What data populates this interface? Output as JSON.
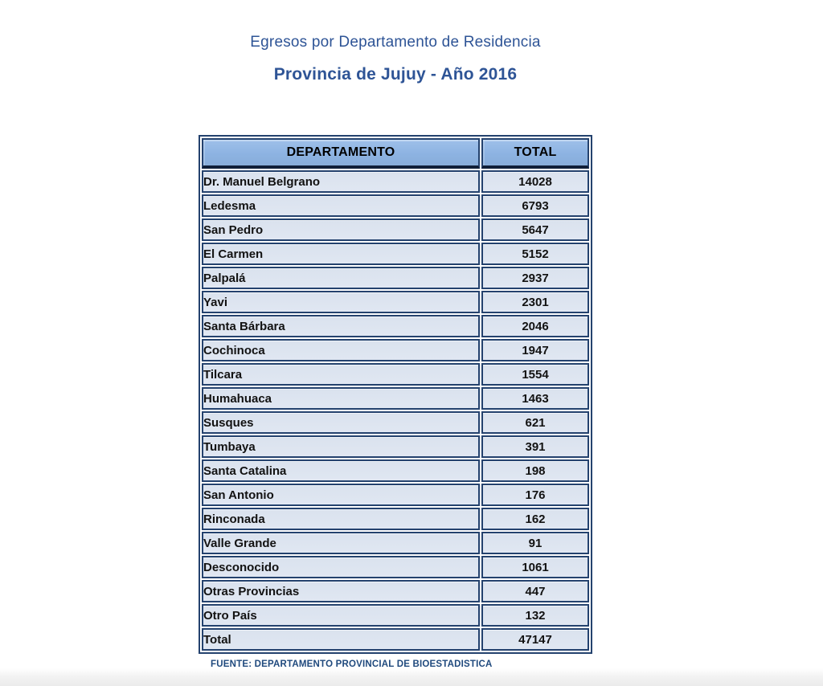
{
  "title": {
    "line1": "Egresos por Departamento de Residencia",
    "line2": "Provincia de Jujuy - Año 2016"
  },
  "table": {
    "headers": [
      "DEPARTAMENTO",
      "TOTAL"
    ],
    "rows": [
      {
        "departamento": "Dr. Manuel Belgrano",
        "total": "14028"
      },
      {
        "departamento": "Ledesma",
        "total": "6793"
      },
      {
        "departamento": "San Pedro",
        "total": "5647"
      },
      {
        "departamento": "El Carmen",
        "total": "5152"
      },
      {
        "departamento": "Palpalá",
        "total": "2937"
      },
      {
        "departamento": "Yavi",
        "total": "2301"
      },
      {
        "departamento": "Santa Bárbara",
        "total": "2046"
      },
      {
        "departamento": "Cochinoca",
        "total": "1947"
      },
      {
        "departamento": "Tilcara",
        "total": "1554"
      },
      {
        "departamento": "Humahuaca",
        "total": "1463"
      },
      {
        "departamento": "Susques",
        "total": "621"
      },
      {
        "departamento": "Tumbaya",
        "total": "391"
      },
      {
        "departamento": "Santa Catalina",
        "total": "198"
      },
      {
        "departamento": "San Antonio",
        "total": "176"
      },
      {
        "departamento": "Rinconada",
        "total": "162"
      },
      {
        "departamento": "Valle Grande",
        "total": "91"
      },
      {
        "departamento": "Desconocido",
        "total": "1061"
      },
      {
        "departamento": "Otras Provincias",
        "total": "447"
      },
      {
        "departamento": "Otro País",
        "total": "132"
      }
    ],
    "total_row": {
      "departamento": "Total",
      "total": "47147"
    }
  },
  "footer": {
    "source": "FUENTE: DEPARTAMENTO PROVINCIAL DE BIOESTADISTICA"
  },
  "colors": {
    "title_blue": "#2e5496",
    "header_fill": "#8db3e2",
    "row_fill": "#dce4ef",
    "border_navy": "#24426e",
    "source_blue": "#1f497d"
  },
  "chart_data": {
    "type": "table",
    "title": "Egresos por Departamento de Residencia — Provincia de Jujuy - Año 2016",
    "columns": [
      "DEPARTAMENTO",
      "TOTAL"
    ],
    "rows": [
      [
        "Dr. Manuel Belgrano",
        14028
      ],
      [
        "Ledesma",
        6793
      ],
      [
        "San Pedro",
        5647
      ],
      [
        "El Carmen",
        5152
      ],
      [
        "Palpalá",
        2937
      ],
      [
        "Yavi",
        2301
      ],
      [
        "Santa Bárbara",
        2046
      ],
      [
        "Cochinoca",
        1947
      ],
      [
        "Tilcara",
        1554
      ],
      [
        "Humahuaca",
        1463
      ],
      [
        "Susques",
        621
      ],
      [
        "Tumbaya",
        391
      ],
      [
        "Santa Catalina",
        198
      ],
      [
        "San Antonio",
        176
      ],
      [
        "Rinconada",
        162
      ],
      [
        "Valle Grande",
        91
      ],
      [
        "Desconocido",
        1061
      ],
      [
        "Otras Provincias",
        447
      ],
      [
        "Otro País",
        132
      ]
    ],
    "total_row": [
      "Total",
      47147
    ]
  }
}
